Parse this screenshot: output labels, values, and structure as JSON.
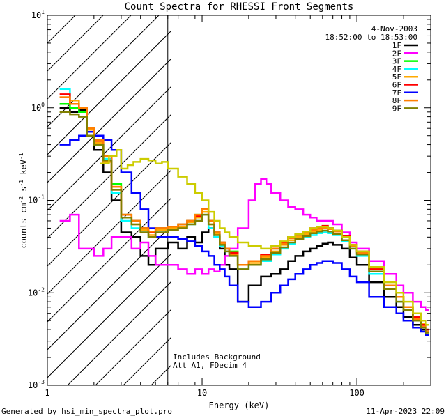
{
  "chart_data": {
    "type": "line",
    "title": "Count Spectra for RHESSI Front Segments",
    "date": "4-Nov-2003",
    "time_range": "18:52:00 to 18:53:00",
    "xlabel": "Energy (keV)",
    "ylabel": "counts cm",
    "ylabel_exp1": "-2",
    "ylabel_mid": " s",
    "ylabel_exp2": "-1",
    "ylabel_tail": " keV",
    "ylabel_exp3": "-1",
    "xscale": "log",
    "yscale": "log",
    "xlim": [
      1,
      300
    ],
    "ylim": [
      0.001,
      10
    ],
    "x_ticks": [
      {
        "value": 1,
        "label": "1"
      },
      {
        "value": 10,
        "label": "10"
      },
      {
        "value": 100,
        "label": "100"
      }
    ],
    "y_ticks": [
      {
        "value": 0.001,
        "base": "10",
        "exp": "-3"
      },
      {
        "value": 0.01,
        "base": "10",
        "exp": "-2"
      },
      {
        "value": 0.1,
        "base": "10",
        "exp": "-1"
      },
      {
        "value": 1,
        "base": "10",
        "exp": "0"
      },
      {
        "value": 10,
        "base": "10",
        "exp": "1"
      }
    ],
    "hatched_region": {
      "from": 1,
      "to": 6
    },
    "annotations": [
      "Includes Background",
      "Att A1, FDecim 4"
    ],
    "series": [
      {
        "name": "1F",
        "color": "#000000",
        "x": [
          1.2,
          1.4,
          1.6,
          1.8,
          2.0,
          2.3,
          2.6,
          3.0,
          3.5,
          4.0,
          4.5,
          5.0,
          6,
          7,
          8,
          9,
          10,
          11,
          12,
          13,
          14,
          15,
          17,
          20,
          24,
          28,
          32,
          36,
          40,
          45,
          50,
          55,
          60,
          65,
          70,
          80,
          90,
          100,
          120,
          150,
          180,
          200,
          230,
          260,
          280
        ],
        "y": [
          1.0,
          0.9,
          0.95,
          0.6,
          0.35,
          0.2,
          0.1,
          0.045,
          0.04,
          0.025,
          0.02,
          0.03,
          0.035,
          0.03,
          0.04,
          0.035,
          0.045,
          0.05,
          0.04,
          0.03,
          0.02,
          0.018,
          0.008,
          0.012,
          0.015,
          0.016,
          0.018,
          0.022,
          0.025,
          0.028,
          0.03,
          0.032,
          0.034,
          0.035,
          0.033,
          0.03,
          0.024,
          0.02,
          0.013,
          0.009,
          0.007,
          0.0055,
          0.0045,
          0.004,
          0.0035
        ]
      },
      {
        "name": "2F",
        "color": "#ff00ff",
        "x": [
          1.2,
          1.4,
          1.6,
          1.8,
          2.0,
          2.3,
          2.6,
          3.0,
          3.5,
          4.0,
          4.5,
          5.0,
          6,
          7,
          8,
          9,
          10,
          11,
          12,
          13,
          14,
          15,
          17,
          20,
          22,
          24,
          26,
          28,
          32,
          36,
          40,
          45,
          50,
          55,
          60,
          65,
          70,
          80,
          90,
          100,
          120,
          150,
          180,
          200,
          230,
          260,
          280
        ],
        "y": [
          0.06,
          0.07,
          0.03,
          0.03,
          0.025,
          0.03,
          0.04,
          0.04,
          0.03,
          0.035,
          0.025,
          0.02,
          0.02,
          0.018,
          0.016,
          0.018,
          0.016,
          0.018,
          0.017,
          0.02,
          0.025,
          0.03,
          0.05,
          0.1,
          0.15,
          0.17,
          0.15,
          0.12,
          0.1,
          0.085,
          0.08,
          0.07,
          0.065,
          0.06,
          0.06,
          0.06,
          0.055,
          0.045,
          0.035,
          0.03,
          0.022,
          0.016,
          0.012,
          0.01,
          0.008,
          0.007,
          0.0065
        ]
      },
      {
        "name": "3F",
        "color": "#00ff00",
        "x": [
          1.2,
          1.4,
          1.6,
          1.8,
          2.0,
          2.3,
          2.6,
          3.0,
          3.5,
          4.0,
          4.5,
          5.0,
          6,
          7,
          8,
          9,
          10,
          11,
          12,
          13,
          14,
          15,
          17,
          20,
          24,
          28,
          32,
          36,
          40,
          45,
          50,
          55,
          60,
          65,
          70,
          80,
          90,
          100,
          120,
          150,
          180,
          200,
          230,
          260,
          280
        ],
        "y": [
          1.1,
          1.0,
          0.9,
          0.55,
          0.4,
          0.28,
          0.15,
          0.07,
          0.06,
          0.05,
          0.045,
          0.05,
          0.05,
          0.055,
          0.06,
          0.07,
          0.08,
          0.06,
          0.045,
          0.035,
          0.03,
          0.028,
          0.02,
          0.022,
          0.025,
          0.03,
          0.035,
          0.04,
          0.042,
          0.045,
          0.048,
          0.05,
          0.052,
          0.05,
          0.047,
          0.04,
          0.032,
          0.028,
          0.018,
          0.012,
          0.009,
          0.007,
          0.0055,
          0.0045,
          0.004
        ]
      },
      {
        "name": "4F",
        "color": "#00ffff",
        "x": [
          1.2,
          1.4,
          1.6,
          1.8,
          2.0,
          2.3,
          2.6,
          3.0,
          3.5,
          4.0,
          4.5,
          5.0,
          6,
          7,
          8,
          9,
          10,
          11,
          12,
          13,
          14,
          15,
          17,
          20,
          24,
          28,
          32,
          36,
          40,
          45,
          50,
          55,
          60,
          65,
          70,
          80,
          90,
          100,
          120,
          150,
          180,
          200,
          230,
          260,
          280
        ],
        "y": [
          1.6,
          1.2,
          1.0,
          0.6,
          0.45,
          0.28,
          0.12,
          0.06,
          0.05,
          0.045,
          0.04,
          0.045,
          0.05,
          0.05,
          0.055,
          0.06,
          0.07,
          0.05,
          0.04,
          0.032,
          0.028,
          0.025,
          0.018,
          0.02,
          0.022,
          0.026,
          0.03,
          0.034,
          0.038,
          0.04,
          0.042,
          0.044,
          0.045,
          0.044,
          0.042,
          0.036,
          0.03,
          0.025,
          0.016,
          0.011,
          0.008,
          0.0065,
          0.005,
          0.0042,
          0.0038
        ]
      },
      {
        "name": "5F",
        "color": "#ffaa00",
        "x": [
          1.2,
          1.4,
          1.6,
          1.8,
          2.0,
          2.3,
          2.6,
          3.0,
          3.5,
          4.0,
          4.5,
          5.0,
          6,
          7,
          8,
          9,
          10,
          11,
          12,
          13,
          14,
          15,
          17,
          20,
          24,
          28,
          32,
          36,
          40,
          45,
          50,
          55,
          60,
          65,
          70,
          80,
          90,
          100,
          120,
          150,
          180,
          200,
          230,
          260,
          280
        ],
        "y": [
          1.3,
          1.2,
          1.0,
          0.58,
          0.42,
          0.26,
          0.14,
          0.065,
          0.055,
          0.048,
          0.042,
          0.048,
          0.05,
          0.052,
          0.058,
          0.065,
          0.075,
          0.055,
          0.043,
          0.034,
          0.03,
          0.027,
          0.02,
          0.021,
          0.024,
          0.028,
          0.033,
          0.037,
          0.04,
          0.043,
          0.046,
          0.048,
          0.05,
          0.049,
          0.046,
          0.04,
          0.033,
          0.028,
          0.018,
          0.012,
          0.009,
          0.007,
          0.0055,
          0.0046,
          0.004
        ]
      },
      {
        "name": "6F",
        "color": "#ff0000",
        "x": [
          1.2,
          1.4,
          1.6,
          1.8,
          2.0,
          2.3,
          2.6,
          3.0,
          3.5,
          4.0,
          4.5,
          5.0,
          6,
          7,
          8,
          9,
          10,
          11,
          12,
          13,
          14,
          15,
          17,
          20,
          24,
          28,
          32,
          36,
          40,
          45,
          50,
          55,
          60,
          65,
          70,
          80,
          90,
          100,
          120,
          150,
          180,
          200,
          230,
          260,
          280
        ],
        "y": [
          1.4,
          1.1,
          1.0,
          0.6,
          0.44,
          0.3,
          0.13,
          0.07,
          0.06,
          0.05,
          0.045,
          0.05,
          0.052,
          0.055,
          0.06,
          0.068,
          0.08,
          0.06,
          0.045,
          0.035,
          0.03,
          0.027,
          0.02,
          0.022,
          0.026,
          0.03,
          0.035,
          0.04,
          0.043,
          0.046,
          0.05,
          0.052,
          0.053,
          0.05,
          0.047,
          0.041,
          0.033,
          0.028,
          0.018,
          0.012,
          0.009,
          0.007,
          0.0055,
          0.0045,
          0.004
        ]
      },
      {
        "name": "7F",
        "color": "#0000ff",
        "x": [
          1.2,
          1.4,
          1.6,
          1.8,
          2.0,
          2.3,
          2.6,
          3.0,
          3.5,
          4.0,
          4.5,
          5.0,
          6,
          7,
          8,
          9,
          10,
          11,
          12,
          13,
          14,
          15,
          17,
          20,
          24,
          28,
          32,
          36,
          40,
          45,
          50,
          55,
          60,
          65,
          70,
          80,
          90,
          100,
          120,
          150,
          180,
          200,
          230,
          260,
          280
        ],
        "y": [
          0.4,
          0.45,
          0.5,
          0.55,
          0.5,
          0.45,
          0.35,
          0.2,
          0.12,
          0.08,
          0.05,
          0.04,
          0.04,
          0.038,
          0.036,
          0.032,
          0.028,
          0.025,
          0.02,
          0.018,
          0.015,
          0.012,
          0.008,
          0.007,
          0.008,
          0.01,
          0.012,
          0.014,
          0.016,
          0.018,
          0.02,
          0.021,
          0.022,
          0.022,
          0.021,
          0.018,
          0.015,
          0.013,
          0.009,
          0.007,
          0.006,
          0.005,
          0.0042,
          0.0038,
          0.0035
        ]
      },
      {
        "name": "8F",
        "color": "#ff7f00",
        "x": [
          1.2,
          1.4,
          1.6,
          1.8,
          2.0,
          2.3,
          2.6,
          3.0,
          3.5,
          4.0,
          4.5,
          5.0,
          6,
          7,
          8,
          9,
          10,
          11,
          12,
          13,
          14,
          15,
          17,
          20,
          24,
          28,
          32,
          36,
          40,
          45,
          50,
          55,
          60,
          65,
          70,
          80,
          90,
          100,
          120,
          150,
          180,
          200,
          230,
          260,
          280
        ],
        "y": [
          1.3,
          1.1,
          1.0,
          0.6,
          0.45,
          0.3,
          0.14,
          0.07,
          0.06,
          0.05,
          0.046,
          0.05,
          0.052,
          0.055,
          0.06,
          0.07,
          0.08,
          0.06,
          0.045,
          0.035,
          0.03,
          0.026,
          0.02,
          0.022,
          0.025,
          0.03,
          0.034,
          0.039,
          0.042,
          0.045,
          0.048,
          0.05,
          0.051,
          0.049,
          0.046,
          0.04,
          0.032,
          0.027,
          0.017,
          0.012,
          0.009,
          0.007,
          0.0052,
          0.0043,
          0.0038
        ]
      },
      {
        "name": "9F",
        "color": "#808000",
        "x": [
          1.2,
          1.4,
          1.6,
          1.8,
          2.0,
          2.3,
          2.6,
          3.0,
          3.5,
          4.0,
          4.5,
          5.0,
          6,
          7,
          8,
          9,
          10,
          11,
          12,
          13,
          14,
          15,
          17,
          20,
          24,
          28,
          32,
          36,
          40,
          45,
          50,
          55,
          60,
          65,
          70,
          80,
          90,
          100,
          120,
          150,
          180,
          200,
          230,
          260,
          280
        ],
        "y": [
          0.9,
          0.85,
          0.8,
          0.5,
          0.4,
          0.27,
          0.13,
          0.065,
          0.055,
          0.045,
          0.04,
          0.045,
          0.048,
          0.05,
          0.055,
          0.06,
          0.07,
          0.055,
          0.042,
          0.033,
          0.028,
          0.025,
          0.018,
          0.02,
          0.023,
          0.027,
          0.031,
          0.035,
          0.038,
          0.041,
          0.044,
          0.046,
          0.047,
          0.046,
          0.043,
          0.037,
          0.03,
          0.026,
          0.017,
          0.011,
          0.008,
          0.0065,
          0.005,
          0.0042,
          0.0037
        ]
      },
      {
        "name": "",
        "color": "#cccc00",
        "x": [
          2.2,
          2.5,
          2.8,
          3.0,
          3.3,
          3.6,
          4.0,
          4.5,
          5.0,
          5.5,
          6,
          7,
          8,
          9,
          10,
          11,
          12,
          13,
          14,
          15,
          17,
          20,
          24,
          28,
          32,
          36,
          40,
          45,
          50,
          55,
          60,
          65,
          70,
          80,
          90,
          100,
          120,
          150,
          180,
          200,
          230,
          260,
          280
        ],
        "y": [
          0.25,
          0.3,
          0.35,
          0.22,
          0.24,
          0.26,
          0.28,
          0.27,
          0.25,
          0.26,
          0.22,
          0.18,
          0.15,
          0.12,
          0.1,
          0.075,
          0.06,
          0.05,
          0.045,
          0.04,
          0.035,
          0.032,
          0.03,
          0.032,
          0.036,
          0.04,
          0.043,
          0.046,
          0.05,
          0.052,
          0.052,
          0.05,
          0.047,
          0.04,
          0.033,
          0.028,
          0.019,
          0.013,
          0.01,
          0.008,
          0.006,
          0.005,
          0.0045
        ]
      }
    ]
  },
  "footer": {
    "left": "Generated by hsi_min_spectra_plot.pro",
    "right": "11-Apr-2023 22:09"
  }
}
